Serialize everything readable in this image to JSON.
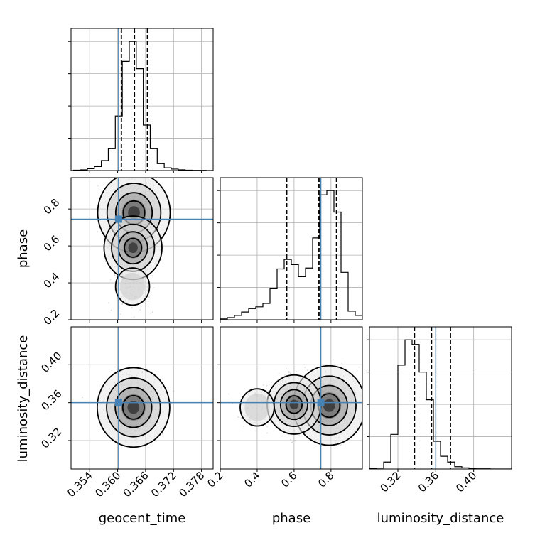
{
  "chart_data": {
    "type": "corner",
    "parameters": [
      "geocent_time",
      "phase",
      "luminosity_distance"
    ],
    "truths": {
      "geocent_time": 0.3602,
      "phase": 0.745,
      "luminosity_distance": 0.36
    },
    "truth_color": "#4682b4",
    "ranges": {
      "geocent_time": [
        0.35,
        0.3805
      ],
      "phase": [
        0.2,
        0.97
      ],
      "luminosity_distance": [
        0.29,
        0.44
      ]
    },
    "ticks": {
      "geocent_time": {
        "values": [
          0.354,
          0.36,
          0.366,
          0.372,
          0.378
        ],
        "labels": [
          "0.354",
          "0.360",
          "0.366",
          "0.372",
          "0.378"
        ]
      },
      "phase": {
        "values": [
          0.2,
          0.4,
          0.6,
          0.8
        ],
        "labels": [
          "0.2",
          "0.4",
          "0.6",
          "0.8"
        ]
      },
      "luminosity_distance": {
        "values": [
          0.32,
          0.36,
          0.4
        ],
        "labels": [
          "0.32",
          "0.36",
          "0.40"
        ]
      }
    },
    "quantiles": {
      "geocent_time": [
        0.3608,
        0.3636,
        0.3664
      ],
      "phase": [
        0.56,
        0.735,
        0.83
      ],
      "luminosity_distance": [
        0.3375,
        0.3555,
        0.3755
      ]
    },
    "histograms": {
      "geocent_time": {
        "edges_start": 0.3505,
        "bin_width": 0.0015,
        "counts": [
          2,
          4,
          10,
          22,
          55,
          120,
          300,
          600,
          710,
          560,
          250,
          120,
          38,
          15,
          8,
          4,
          2,
          1,
          1,
          0
        ]
      },
      "phase": {
        "edges_start": 0.2,
        "bin_width": 0.0385,
        "counts": [
          2,
          5,
          10,
          18,
          26,
          30,
          38,
          72,
          118,
          140,
          128,
          100,
          120,
          190,
          290,
          300,
          250,
          110,
          20,
          10
        ]
      },
      "luminosity_distance": {
        "edges_start": 0.29,
        "bin_width": 0.0075,
        "counts": [
          2,
          4,
          30,
          150,
          450,
          560,
          540,
          420,
          300,
          120,
          55,
          30,
          10,
          5,
          2,
          1,
          1,
          0,
          0,
          0
        ]
      }
    },
    "contour_2d": {
      "geocent_time-phase": {
        "modes": [
          [
            0.3635,
            0.78,
            1.0
          ],
          [
            0.3633,
            0.59,
            0.55
          ],
          [
            0.3632,
            0.38,
            0.1
          ]
        ]
      },
      "geocent_time-luminosity_distance": {
        "modes": [
          [
            0.3634,
            0.355,
            1.0
          ]
        ]
      },
      "phase-luminosity_distance": {
        "modes": [
          [
            0.79,
            0.357,
            1.0
          ],
          [
            0.6,
            0.358,
            0.45
          ],
          [
            0.4,
            0.355,
            0.1
          ]
        ]
      }
    },
    "xlabels": [
      "geocent_time",
      "phase",
      "luminosity_distance"
    ],
    "ylabels": [
      "",
      "phase",
      "luminosity_distance"
    ],
    "grid": true
  }
}
